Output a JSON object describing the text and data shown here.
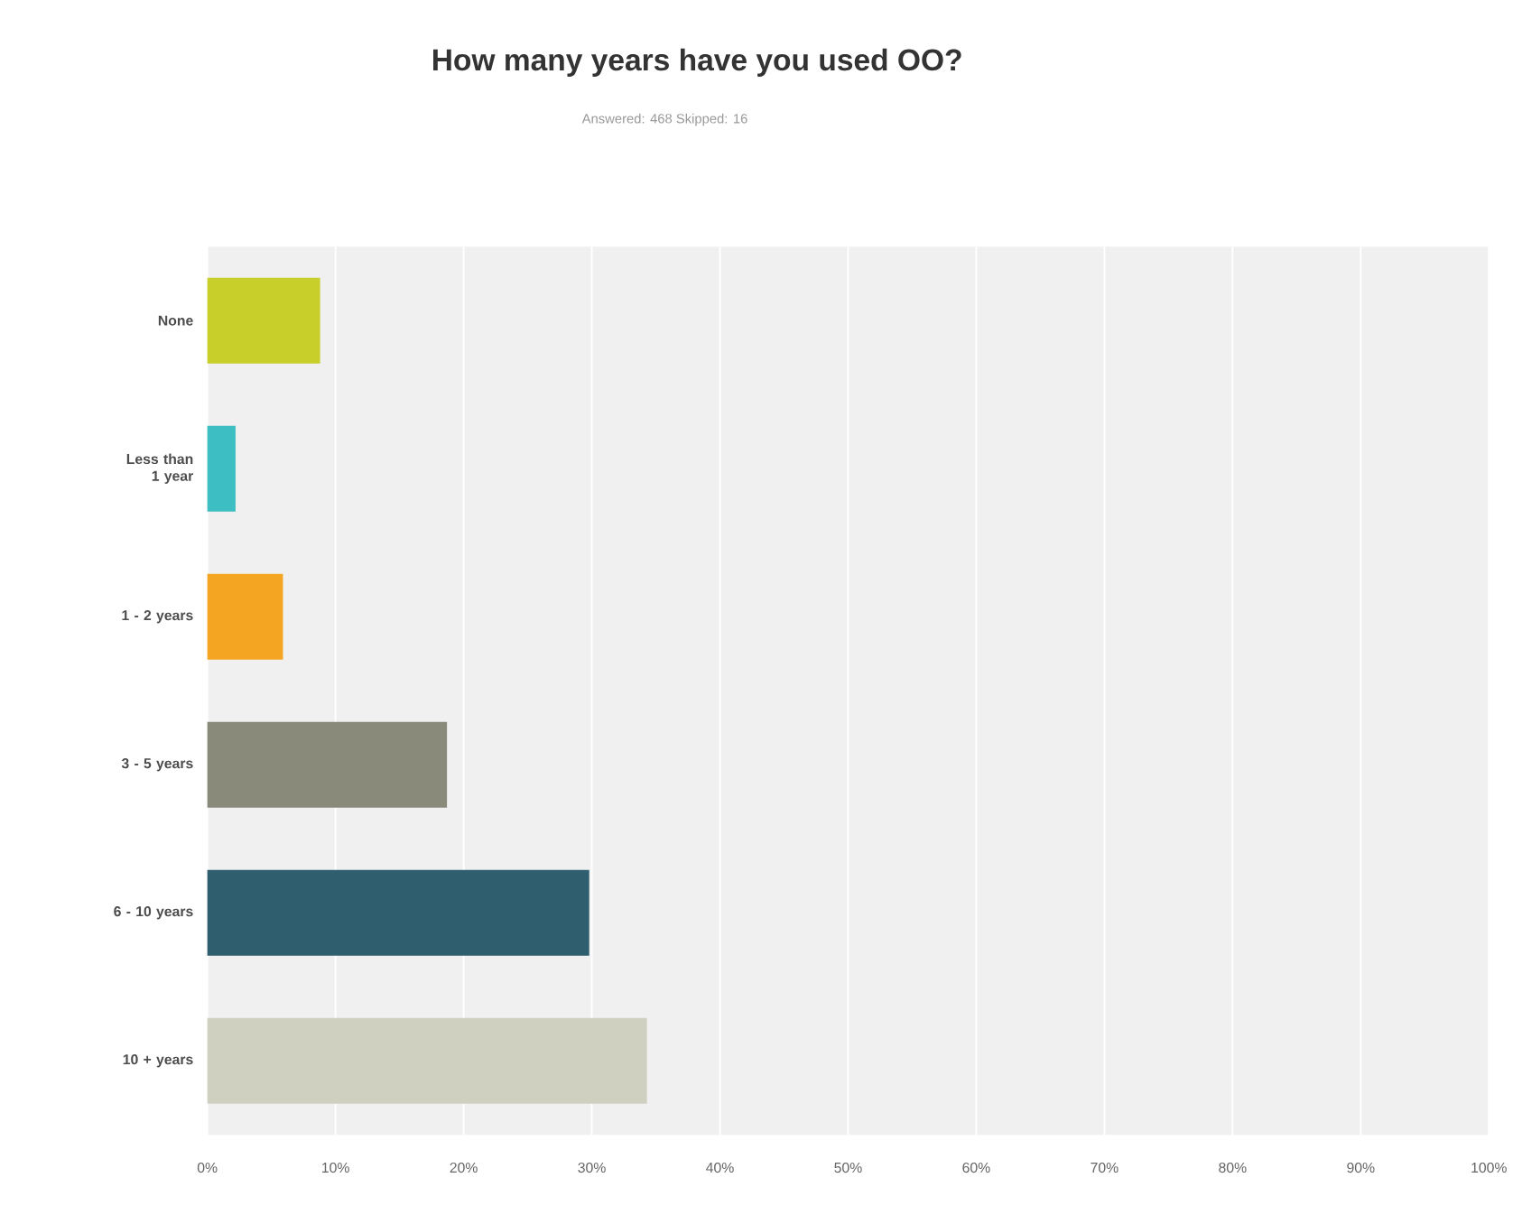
{
  "chart_data": {
    "type": "bar",
    "orientation": "horizontal",
    "title": "How many years have you used OO?",
    "subtitle": "Answered: 468    Skipped: 16",
    "categories": [
      "None",
      "Less than 1 year",
      "1 - 2 years",
      "3 - 5 years",
      "6 - 10 years",
      "10 + years"
    ],
    "values": [
      8.8,
      2.2,
      5.9,
      18.7,
      29.8,
      34.3
    ],
    "colors": [
      "#c9cf2a",
      "#3cbec3",
      "#f4a622",
      "#8a8a7a",
      "#2f5f6e",
      "#d0d0c0"
    ],
    "xlim": [
      0,
      100
    ],
    "xticks": [
      {
        "value": 0,
        "label": "0%"
      },
      {
        "value": 10,
        "label": "10%"
      },
      {
        "value": 20,
        "label": "20%"
      },
      {
        "value": 30,
        "label": "30%"
      },
      {
        "value": 40,
        "label": "40%"
      },
      {
        "value": 50,
        "label": "50%"
      },
      {
        "value": 60,
        "label": "60%"
      },
      {
        "value": 70,
        "label": "70%"
      },
      {
        "value": 80,
        "label": "80%"
      },
      {
        "value": 90,
        "label": "90%"
      },
      {
        "value": 100,
        "label": "100%"
      }
    ],
    "grid": "x"
  }
}
